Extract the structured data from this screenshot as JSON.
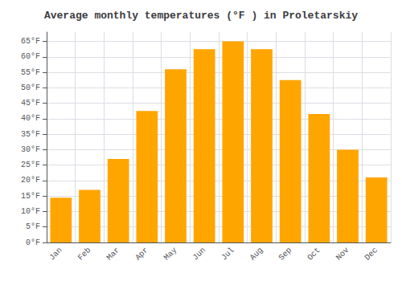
{
  "chart_data": {
    "type": "bar",
    "title": "Average monthly temperatures (°F ) in Proletarskiy",
    "categories": [
      "Jan",
      "Feb",
      "Mar",
      "Apr",
      "May",
      "Jun",
      "Jul",
      "Aug",
      "Sep",
      "Oct",
      "Nov",
      "Dec"
    ],
    "values": [
      14.5,
      17.0,
      27.0,
      42.5,
      56.0,
      62.5,
      65.0,
      62.5,
      52.5,
      41.5,
      30.0,
      21.0
    ],
    "color": "#FFA500",
    "ylim": [
      0,
      68
    ],
    "yticks": [
      {
        "value": 0,
        "label": "0°F"
      },
      {
        "value": 5,
        "label": "5°F"
      },
      {
        "value": 10,
        "label": "10°F"
      },
      {
        "value": 15,
        "label": "15°F"
      },
      {
        "value": 20,
        "label": "20°F"
      },
      {
        "value": 25,
        "label": "25°F"
      },
      {
        "value": 30,
        "label": "30°F"
      },
      {
        "value": 35,
        "label": "35°F"
      },
      {
        "value": 40,
        "label": "40°F"
      },
      {
        "value": 45,
        "label": "45°F"
      },
      {
        "value": 50,
        "label": "50°F"
      },
      {
        "value": 55,
        "label": "55°F"
      },
      {
        "value": 60,
        "label": "60°F"
      },
      {
        "value": 65,
        "label": "65°F"
      }
    ],
    "grid": true
  }
}
